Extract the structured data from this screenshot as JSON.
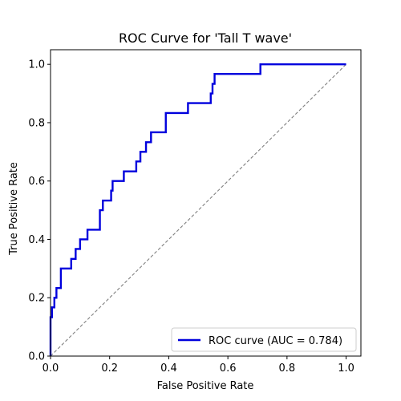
{
  "chart_data": {
    "type": "line",
    "title": "ROC Curve for 'Tall T wave'",
    "xlabel": "False Positive Rate",
    "ylabel": "True Positive Rate",
    "xlim": [
      0.0,
      1.05
    ],
    "ylim": [
      0.0,
      1.05
    ],
    "xticks": [
      "0.0",
      "0.2",
      "0.4",
      "0.6",
      "0.8",
      "1.0"
    ],
    "yticks": [
      "0.0",
      "0.2",
      "0.4",
      "0.6",
      "0.8",
      "1.0"
    ],
    "grid": false,
    "legend_position": "lower-right",
    "series": [
      {
        "name": "ROC curve (AUC = 0.784)",
        "color": "#0000dd",
        "style": "solid",
        "x": [
          0,
          0,
          0.005,
          0.005,
          0.013,
          0.013,
          0.02,
          0.02,
          0.035,
          0.035,
          0.07,
          0.07,
          0.085,
          0.085,
          0.1,
          0.1,
          0.125,
          0.125,
          0.167,
          0.167,
          0.177,
          0.177,
          0.205,
          0.205,
          0.21,
          0.21,
          0.248,
          0.248,
          0.29,
          0.29,
          0.304,
          0.304,
          0.323,
          0.323,
          0.34,
          0.34,
          0.39,
          0.39,
          0.465,
          0.465,
          0.542,
          0.542,
          0.548,
          0.548,
          0.555,
          0.555,
          0.71,
          0.71,
          1.0
        ],
        "y": [
          0,
          0.133,
          0.133,
          0.167,
          0.167,
          0.2,
          0.2,
          0.233,
          0.233,
          0.3,
          0.3,
          0.333,
          0.333,
          0.367,
          0.367,
          0.4,
          0.4,
          0.433,
          0.433,
          0.5,
          0.5,
          0.533,
          0.533,
          0.567,
          0.567,
          0.6,
          0.6,
          0.633,
          0.633,
          0.667,
          0.667,
          0.7,
          0.7,
          0.733,
          0.733,
          0.767,
          0.767,
          0.833,
          0.833,
          0.867,
          0.867,
          0.9,
          0.9,
          0.933,
          0.933,
          0.967,
          0.967,
          1.0,
          1.0
        ]
      },
      {
        "name": "",
        "color": "#808080",
        "style": "dashed",
        "x": [
          0,
          1
        ],
        "y": [
          0,
          1
        ]
      }
    ]
  }
}
